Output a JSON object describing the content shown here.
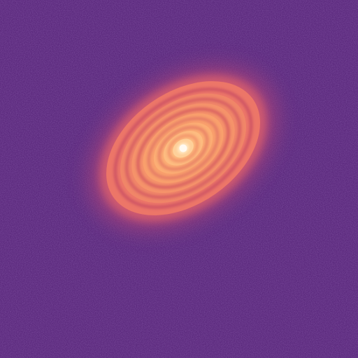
{
  "image": {
    "subject": "protoplanetary-disk",
    "colormap": "magma",
    "colors": {
      "background": "#5c2a7e",
      "background_dark": "#3f1a63",
      "halo": "#b24a78",
      "outer_disk": "#e8706a",
      "mid_disk": "#f7956a",
      "inner_disk": "#fcb27a",
      "gap": "#d7585f",
      "core": "#fff4e4"
    },
    "ring_count": 7,
    "gap_count": 6
  }
}
